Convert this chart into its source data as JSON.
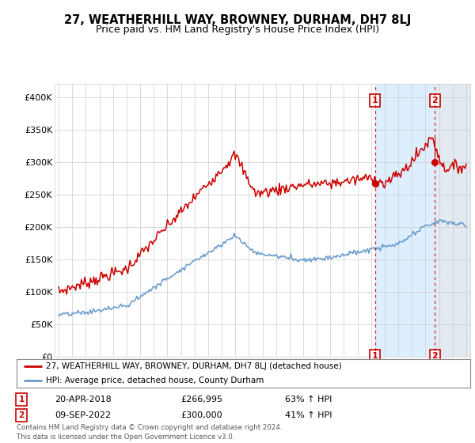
{
  "title": "27, WEATHERHILL WAY, BROWNEY, DURHAM, DH7 8LJ",
  "subtitle": "Price paid vs. HM Land Registry's House Price Index (HPI)",
  "ylim": [
    0,
    420000
  ],
  "yticks": [
    0,
    50000,
    100000,
    150000,
    200000,
    250000,
    300000,
    350000,
    400000
  ],
  "ytick_labels": [
    "£0",
    "£50K",
    "£100K",
    "£150K",
    "£200K",
    "£250K",
    "£300K",
    "£350K",
    "£400K"
  ],
  "xlim_start": 1994.7,
  "xlim_end": 2025.3,
  "plot_bg_color": "#ffffff",
  "highlight_bg_color": "#ddeeff",
  "grid_color": "#cccccc",
  "red_line_color": "#cc0000",
  "blue_line_color": "#6699cc",
  "sale1_x": 2018.29,
  "sale1_y": 266995,
  "sale2_x": 2022.69,
  "sale2_y": 300000,
  "sale1_label": "1",
  "sale2_label": "2",
  "legend_line1": "27, WEATHERHILL WAY, BROWNEY, DURHAM, DH7 8LJ (detached house)",
  "legend_line2": "HPI: Average price, detached house, County Durham",
  "table_row1": [
    "1",
    "20-APR-2018",
    "£266,995",
    "63% ↑ HPI"
  ],
  "table_row2": [
    "2",
    "09-SEP-2022",
    "£300,000",
    "41% ↑ HPI"
  ],
  "footer": "Contains HM Land Registry data © Crown copyright and database right 2024.\nThis data is licensed under the Open Government Licence v3.0.",
  "title_fontsize": 10.5,
  "subtitle_fontsize": 9
}
